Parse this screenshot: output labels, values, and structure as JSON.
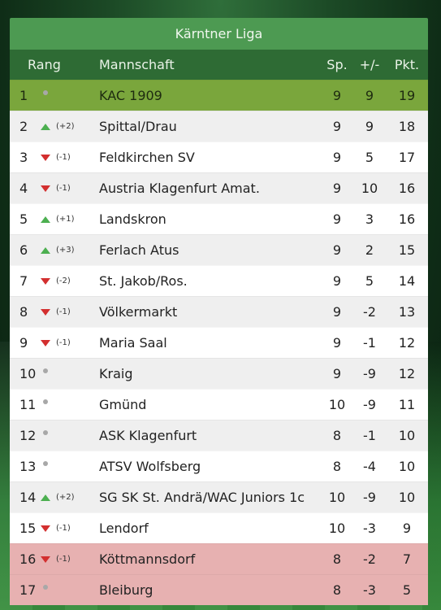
{
  "league_title": "Kärntner Liga",
  "columns": {
    "rank": "Rang",
    "team": "Mannschaft",
    "played": "Sp.",
    "diff": "+/-",
    "points": "Pkt."
  },
  "colors": {
    "leader": "#7aa63c",
    "relegation": "#e7b1b1",
    "up": "#4caf50",
    "down": "#d32f2f"
  },
  "rows": [
    {
      "rank": "1",
      "trend": "same",
      "change": "",
      "team": "KAC 1909",
      "played": "9",
      "diff": "9",
      "points": "19",
      "zone": "leader"
    },
    {
      "rank": "2",
      "trend": "up",
      "change": "(+2)",
      "team": "Spittal/Drau",
      "played": "9",
      "diff": "9",
      "points": "18",
      "zone": ""
    },
    {
      "rank": "3",
      "trend": "down",
      "change": "(-1)",
      "team": "Feldkirchen SV",
      "played": "9",
      "diff": "5",
      "points": "17",
      "zone": ""
    },
    {
      "rank": "4",
      "trend": "down",
      "change": "(-1)",
      "team": "Austria Klagenfurt Amat.",
      "played": "9",
      "diff": "10",
      "points": "16",
      "zone": ""
    },
    {
      "rank": "5",
      "trend": "up",
      "change": "(+1)",
      "team": "Landskron",
      "played": "9",
      "diff": "3",
      "points": "16",
      "zone": ""
    },
    {
      "rank": "6",
      "trend": "up",
      "change": "(+3)",
      "team": "Ferlach Atus",
      "played": "9",
      "diff": "2",
      "points": "15",
      "zone": ""
    },
    {
      "rank": "7",
      "trend": "down",
      "change": "(-2)",
      "team": "St. Jakob/Ros.",
      "played": "9",
      "diff": "5",
      "points": "14",
      "zone": ""
    },
    {
      "rank": "8",
      "trend": "down",
      "change": "(-1)",
      "team": "Völkermarkt",
      "played": "9",
      "diff": "-2",
      "points": "13",
      "zone": ""
    },
    {
      "rank": "9",
      "trend": "down",
      "change": "(-1)",
      "team": "Maria Saal",
      "played": "9",
      "diff": "-1",
      "points": "12",
      "zone": ""
    },
    {
      "rank": "10",
      "trend": "same",
      "change": "",
      "team": "Kraig",
      "played": "9",
      "diff": "-9",
      "points": "12",
      "zone": ""
    },
    {
      "rank": "11",
      "trend": "same",
      "change": "",
      "team": "Gmünd",
      "played": "10",
      "diff": "-9",
      "points": "11",
      "zone": ""
    },
    {
      "rank": "12",
      "trend": "same",
      "change": "",
      "team": "ASK Klagenfurt",
      "played": "8",
      "diff": "-1",
      "points": "10",
      "zone": ""
    },
    {
      "rank": "13",
      "trend": "same",
      "change": "",
      "team": "ATSV Wolfsberg",
      "played": "8",
      "diff": "-4",
      "points": "10",
      "zone": ""
    },
    {
      "rank": "14",
      "trend": "up",
      "change": "(+2)",
      "team": "SG SK St. Andrä/WAC Juniors 1c",
      "played": "10",
      "diff": "-9",
      "points": "10",
      "zone": ""
    },
    {
      "rank": "15",
      "trend": "down",
      "change": "(-1)",
      "team": "Lendorf",
      "played": "10",
      "diff": "-3",
      "points": "9",
      "zone": ""
    },
    {
      "rank": "16",
      "trend": "down",
      "change": "(-1)",
      "team": "Köttmannsdorf",
      "played": "8",
      "diff": "-2",
      "points": "7",
      "zone": "relegation"
    },
    {
      "rank": "17",
      "trend": "same",
      "change": "",
      "team": "Bleiburg",
      "played": "8",
      "diff": "-3",
      "points": "5",
      "zone": "relegation"
    }
  ]
}
